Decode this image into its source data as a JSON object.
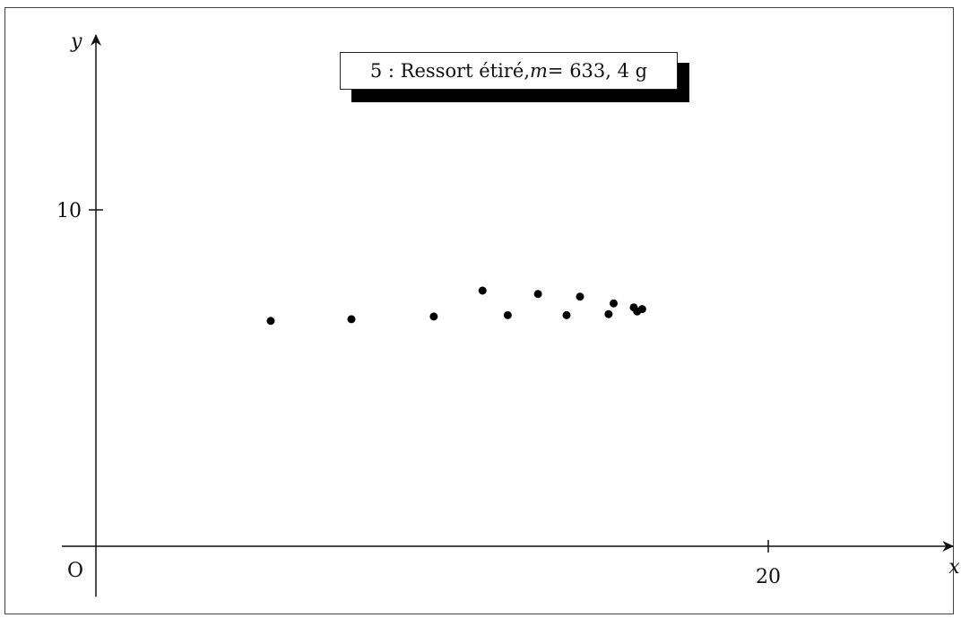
{
  "chart_data": {
    "type": "scatter",
    "title": "5 : Ressort étiré, m = 633, 4 g",
    "title_parts": {
      "before": "5 : Ressort étiré, ",
      "m": "m",
      "after": " = 633, 4 g"
    },
    "xlabel": "x",
    "ylabel": "y",
    "origin_label": "O",
    "xlim": [
      -1,
      25.5
    ],
    "ylim": [
      -1.5,
      15.2
    ],
    "x_ticks": [
      {
        "value": 20,
        "label": "20"
      }
    ],
    "y_ticks": [
      {
        "value": 10,
        "label": "10"
      }
    ],
    "grid": false,
    "points": [
      {
        "x": 5.2,
        "y": 6.7
      },
      {
        "x": 7.6,
        "y": 6.75
      },
      {
        "x": 10.05,
        "y": 6.83
      },
      {
        "x": 11.5,
        "y": 7.6
      },
      {
        "x": 12.25,
        "y": 6.87
      },
      {
        "x": 13.15,
        "y": 7.5
      },
      {
        "x": 14.0,
        "y": 6.87
      },
      {
        "x": 14.4,
        "y": 7.42
      },
      {
        "x": 15.25,
        "y": 6.9
      },
      {
        "x": 15.4,
        "y": 7.22
      },
      {
        "x": 16.0,
        "y": 7.1
      },
      {
        "x": 16.1,
        "y": 6.98
      },
      {
        "x": 16.25,
        "y": 7.05
      }
    ]
  }
}
